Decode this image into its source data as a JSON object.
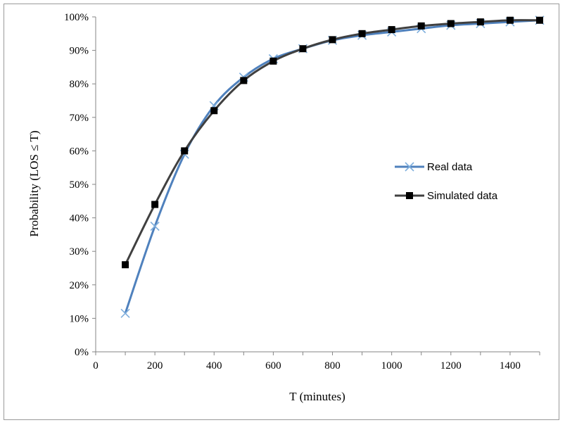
{
  "chart_data": {
    "type": "line",
    "title": "",
    "xlabel": "T (minutes)",
    "ylabel": "Probability (LOS ≤ T)",
    "xlim": [
      0,
      1500
    ],
    "ylim": [
      0,
      1
    ],
    "x_ticks": [
      0,
      200,
      400,
      600,
      800,
      1000,
      1200,
      1400
    ],
    "x_tick_labels": [
      "0",
      "200",
      "400",
      "600",
      "800",
      "1000",
      "1200",
      "1400"
    ],
    "y_ticks": [
      0,
      0.1,
      0.2,
      0.3,
      0.4,
      0.5,
      0.6,
      0.7,
      0.8,
      0.9,
      1.0
    ],
    "y_tick_labels": [
      "0%",
      "10%",
      "20%",
      "30%",
      "40%",
      "50%",
      "60%",
      "70%",
      "80%",
      "90%",
      "100%"
    ],
    "grid": false,
    "legend_position": "right-middle",
    "x": [
      100,
      200,
      300,
      400,
      500,
      600,
      700,
      800,
      900,
      1000,
      1100,
      1200,
      1300,
      1400,
      1500
    ],
    "series": [
      {
        "name": "Real data",
        "color": "#4f81bd",
        "marker": "x",
        "marker_color": "#7eaedc",
        "values": [
          0.115,
          0.375,
          0.59,
          0.735,
          0.82,
          0.875,
          0.905,
          0.93,
          0.945,
          0.955,
          0.965,
          0.975,
          0.98,
          0.985,
          0.99
        ]
      },
      {
        "name": "Simulated data",
        "color": "#404040",
        "marker": "square",
        "marker_color": "#000000",
        "values": [
          0.26,
          0.44,
          0.6,
          0.72,
          0.81,
          0.868,
          0.905,
          0.932,
          0.95,
          0.962,
          0.973,
          0.98,
          0.985,
          0.99,
          0.99
        ]
      }
    ]
  }
}
